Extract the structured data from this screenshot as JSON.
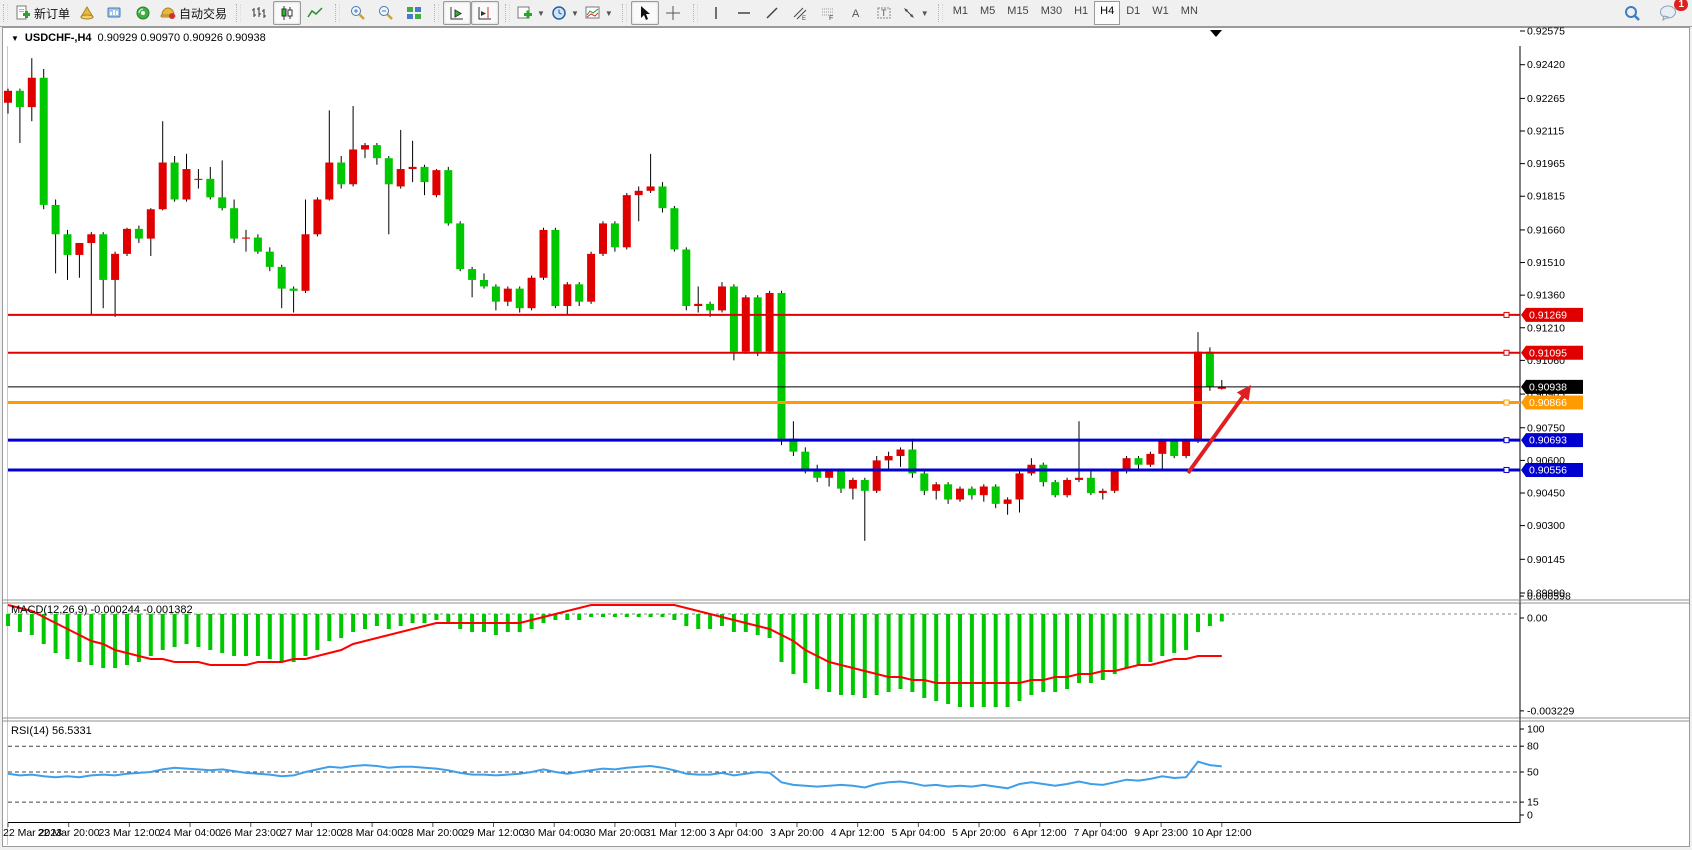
{
  "toolbar": {
    "new_order_label": "新订单",
    "auto_trading_label": "自动交易",
    "timeframes": [
      "M1",
      "M5",
      "M15",
      "M30",
      "H1",
      "H4",
      "D1",
      "W1",
      "MN"
    ],
    "active_timeframe": "H4",
    "chat_badge": "1"
  },
  "window": {
    "title": "USDCHF-,H4",
    "ohlc_text": "0.90929 0.90970 0.90926 0.90938"
  },
  "price_axis": {
    "ticks": [
      "0.92575",
      "0.92420",
      "0.92265",
      "0.92115",
      "0.91965",
      "0.91815",
      "0.91660",
      "0.91510",
      "0.91360",
      "0.91210",
      "0.91060",
      "0.90905",
      "0.90750",
      "0.90600",
      "0.90450",
      "0.90300",
      "0.90145",
      "0.89990"
    ],
    "p_top": 0.92575,
    "p_bottom": 0.8999
  },
  "hlines": [
    {
      "label": "0.91269",
      "price": 0.91269,
      "color": "#e00000",
      "width": 2
    },
    {
      "label": "0.91095",
      "price": 0.91095,
      "color": "#e00000",
      "width": 2
    },
    {
      "label": "0.90938",
      "price": 0.90938,
      "color": "#000000",
      "width": 1,
      "current": true
    },
    {
      "label": "0.90866",
      "price": 0.90866,
      "color": "#ff9a00",
      "width": 3
    },
    {
      "label": "0.90693",
      "price": 0.90693,
      "color": "#0000d0",
      "width": 3
    },
    {
      "label": "0.90556",
      "price": 0.90556,
      "color": "#0000d0",
      "width": 3
    }
  ],
  "colors": {
    "up": "#e00000",
    "down": "#00c800",
    "wick": "#000000",
    "rsi_line": "#3e9fe8",
    "macd_hist": "#00c800",
    "macd_signal": "#ff0000",
    "arrow": "#e02020"
  },
  "chart_data": {
    "type": "candlestick",
    "symbol": "USDCHF",
    "period": "H4",
    "title": "USDCHF-,H4  0.90929 0.90970 0.90926 0.90938",
    "ylim": [
      0.8999,
      0.92575
    ],
    "time_labels": [
      "22 Mar 2023",
      "22 Mar 20:00",
      "23 Mar 12:00",
      "24 Mar 04:00",
      "26 Mar 23:00",
      "27 Mar 12:00",
      "28 Mar 04:00",
      "28 Mar 20:00",
      "29 Mar 12:00",
      "30 Mar 04:00",
      "30 Mar 20:00",
      "31 Mar 12:00",
      "3 Apr 04:00",
      "3 Apr 20:00",
      "4 Apr 12:00",
      "5 Apr 04:00",
      "5 Apr 20:00",
      "6 Apr 12:00",
      "7 Apr 04:00",
      "9 Apr 23:00",
      "10 Apr 12:00"
    ],
    "candles": [
      [
        0.92245,
        0.9231,
        0.92195,
        0.923
      ],
      [
        0.923,
        0.9231,
        0.9206,
        0.92225
      ],
      [
        0.92225,
        0.9245,
        0.9216,
        0.9236
      ],
      [
        0.9236,
        0.924,
        0.91755,
        0.91775
      ],
      [
        0.91775,
        0.918,
        0.9146,
        0.9164
      ],
      [
        0.9164,
        0.9166,
        0.9143,
        0.91545
      ],
      [
        0.91545,
        0.916,
        0.9144,
        0.916
      ],
      [
        0.916,
        0.9165,
        0.9127,
        0.9164
      ],
      [
        0.9164,
        0.9165,
        0.913,
        0.9143
      ],
      [
        0.9143,
        0.9156,
        0.9126,
        0.9155
      ],
      [
        0.9155,
        0.9167,
        0.9154,
        0.91665
      ],
      [
        0.91665,
        0.9168,
        0.916,
        0.9162
      ],
      [
        0.9162,
        0.9176,
        0.9154,
        0.91755
      ],
      [
        0.91755,
        0.9216,
        0.9175,
        0.9197
      ],
      [
        0.9197,
        0.92,
        0.9179,
        0.918
      ],
      [
        0.918,
        0.9201,
        0.9179,
        0.9194
      ],
      [
        0.9189,
        0.9194,
        0.9185,
        0.91895
      ],
      [
        0.91895,
        0.9195,
        0.918,
        0.9181
      ],
      [
        0.9181,
        0.9198,
        0.9175,
        0.9176
      ],
      [
        0.9176,
        0.918,
        0.916,
        0.9162
      ],
      [
        0.9162,
        0.9166,
        0.9156,
        0.91625
      ],
      [
        0.91625,
        0.9164,
        0.9155,
        0.9156
      ],
      [
        0.9156,
        0.9158,
        0.9147,
        0.9149
      ],
      [
        0.9149,
        0.915,
        0.913,
        0.9139
      ],
      [
        0.9139,
        0.914,
        0.9128,
        0.9138
      ],
      [
        0.9138,
        0.918,
        0.9137,
        0.9164
      ],
      [
        0.9164,
        0.9181,
        0.9163,
        0.918
      ],
      [
        0.918,
        0.9221,
        0.91795,
        0.9197
      ],
      [
        0.9197,
        0.92,
        0.9185,
        0.9187
      ],
      [
        0.9187,
        0.9223,
        0.9186,
        0.9203
      ],
      [
        0.9203,
        0.9206,
        0.9199,
        0.9205
      ],
      [
        0.9205,
        0.9206,
        0.9196,
        0.9199
      ],
      [
        0.9199,
        0.92,
        0.9164,
        0.9187
      ],
      [
        0.9186,
        0.9212,
        0.9185,
        0.9194
      ],
      [
        0.9194,
        0.9207,
        0.9188,
        0.9195
      ],
      [
        0.9195,
        0.9196,
        0.9182,
        0.9188
      ],
      [
        0.9182,
        0.9194,
        0.9181,
        0.91935
      ],
      [
        0.91935,
        0.9195,
        0.9168,
        0.9169
      ],
      [
        0.9169,
        0.917,
        0.9147,
        0.9148
      ],
      [
        0.9148,
        0.9149,
        0.9135,
        0.9143
      ],
      [
        0.9143,
        0.9146,
        0.9139,
        0.914
      ],
      [
        0.914,
        0.9141,
        0.9129,
        0.9133
      ],
      [
        0.9133,
        0.914,
        0.9131,
        0.9139
      ],
      [
        0.9139,
        0.914,
        0.9128,
        0.913
      ],
      [
        0.913,
        0.9145,
        0.9129,
        0.9144
      ],
      [
        0.9144,
        0.9167,
        0.9143,
        0.9166
      ],
      [
        0.9166,
        0.9167,
        0.913,
        0.9131
      ],
      [
        0.9131,
        0.9142,
        0.9127,
        0.9141
      ],
      [
        0.9141,
        0.9142,
        0.9131,
        0.9133
      ],
      [
        0.9133,
        0.9156,
        0.9132,
        0.9155
      ],
      [
        0.9155,
        0.917,
        0.9154,
        0.9169
      ],
      [
        0.9169,
        0.917,
        0.9156,
        0.9158
      ],
      [
        0.9158,
        0.9183,
        0.9157,
        0.9182
      ],
      [
        0.9182,
        0.9186,
        0.917,
        0.9184
      ],
      [
        0.9184,
        0.9201,
        0.9183,
        0.9186
      ],
      [
        0.9186,
        0.9188,
        0.9174,
        0.9176
      ],
      [
        0.9176,
        0.9177,
        0.9156,
        0.9157
      ],
      [
        0.9157,
        0.9158,
        0.9129,
        0.9131
      ],
      [
        0.9131,
        0.914,
        0.9128,
        0.9132
      ],
      [
        0.9132,
        0.9133,
        0.9126,
        0.9129
      ],
      [
        0.9129,
        0.9142,
        0.9128,
        0.914
      ],
      [
        0.914,
        0.9141,
        0.9106,
        0.911
      ],
      [
        0.911,
        0.9136,
        0.9109,
        0.9135
      ],
      [
        0.9135,
        0.9136,
        0.9108,
        0.911
      ],
      [
        0.911,
        0.9138,
        0.9109,
        0.9137
      ],
      [
        0.9137,
        0.9138,
        0.9067,
        0.907
      ],
      [
        0.907,
        0.9078,
        0.9062,
        0.9064
      ],
      [
        0.9064,
        0.9066,
        0.9054,
        0.9056
      ],
      [
        0.9056,
        0.9058,
        0.905,
        0.9052
      ],
      [
        0.9052,
        0.9056,
        0.9048,
        0.9055
      ],
      [
        0.9055,
        0.9056,
        0.9045,
        0.9047
      ],
      [
        0.9047,
        0.9052,
        0.9042,
        0.9051
      ],
      [
        0.9051,
        0.9052,
        0.9023,
        0.9046
      ],
      [
        0.9046,
        0.9062,
        0.9045,
        0.906
      ],
      [
        0.906,
        0.9064,
        0.9056,
        0.9062
      ],
      [
        0.9062,
        0.9066,
        0.9057,
        0.9065
      ],
      [
        0.9065,
        0.907,
        0.9052,
        0.9054
      ],
      [
        0.9054,
        0.9055,
        0.9044,
        0.9046
      ],
      [
        0.9046,
        0.905,
        0.9042,
        0.9049
      ],
      [
        0.9049,
        0.905,
        0.904,
        0.9042
      ],
      [
        0.9042,
        0.9048,
        0.9041,
        0.9047
      ],
      [
        0.9047,
        0.9048,
        0.9042,
        0.9044
      ],
      [
        0.9044,
        0.9049,
        0.9041,
        0.9048
      ],
      [
        0.9048,
        0.9049,
        0.9038,
        0.904
      ],
      [
        0.904,
        0.9043,
        0.9035,
        0.9042
      ],
      [
        0.9042,
        0.9055,
        0.9036,
        0.9054
      ],
      [
        0.9054,
        0.9061,
        0.9053,
        0.9058
      ],
      [
        0.9058,
        0.9059,
        0.9048,
        0.905
      ],
      [
        0.905,
        0.9051,
        0.9043,
        0.9044
      ],
      [
        0.9044,
        0.9052,
        0.9043,
        0.9051
      ],
      [
        0.9051,
        0.9078,
        0.905,
        0.9052
      ],
      [
        0.9052,
        0.9056,
        0.9044,
        0.9045
      ],
      [
        0.9045,
        0.9047,
        0.9042,
        0.9046
      ],
      [
        0.9046,
        0.9056,
        0.9045,
        0.9055
      ],
      [
        0.9055,
        0.9062,
        0.9054,
        0.9061
      ],
      [
        0.9061,
        0.9062,
        0.9056,
        0.9058
      ],
      [
        0.9058,
        0.9064,
        0.9057,
        0.9063
      ],
      [
        0.9063,
        0.907,
        0.9056,
        0.9069
      ],
      [
        0.9069,
        0.907,
        0.9061,
        0.9062
      ],
      [
        0.9062,
        0.907,
        0.9061,
        0.9069
      ],
      [
        0.90693,
        0.9119,
        0.9068,
        0.911
      ],
      [
        0.911,
        0.9112,
        0.9092,
        0.9094
      ],
      [
        0.90929,
        0.9097,
        0.90926,
        0.90938
      ]
    ],
    "macd": {
      "label": "MACD(12,26,9)",
      "values_text": "-0.000244 -0.001382",
      "main_value": -0.000244,
      "signal_value": -0.001382,
      "axis_labels": [
        "0.000598",
        "0.00",
        "-0.003229"
      ],
      "axis_max": 0.000598,
      "axis_min": -0.003229,
      "histogram": [
        -0.0004,
        -0.0006,
        -0.0007,
        -0.001,
        -0.0013,
        -0.0015,
        -0.0016,
        -0.0017,
        -0.0018,
        -0.0018,
        -0.0017,
        -0.0016,
        -0.0014,
        -0.0012,
        -0.0011,
        -0.001,
        -0.0011,
        -0.0012,
        -0.0013,
        -0.0014,
        -0.0014,
        -0.0014,
        -0.0015,
        -0.0016,
        -0.0016,
        -0.0014,
        -0.0012,
        -0.0009,
        -0.0008,
        -0.0006,
        -0.0005,
        -0.0004,
        -0.0005,
        -0.0004,
        -0.0003,
        -0.0003,
        -0.0002,
        -0.0003,
        -0.0005,
        -0.0006,
        -0.0006,
        -0.0007,
        -0.0006,
        -0.0006,
        -0.0005,
        -0.0003,
        -0.0002,
        -0.0002,
        -0.0002,
        -0.0001,
        -0.0001,
        -0.0001,
        -0.0001,
        -0.0001,
        -0.0001,
        -0.0001,
        -0.0002,
        -0.0004,
        -0.0005,
        -0.0005,
        -0.0004,
        -0.0006,
        -0.0006,
        -0.0007,
        -0.0008,
        -0.0016,
        -0.002,
        -0.0023,
        -0.0025,
        -0.0026,
        -0.0027,
        -0.0027,
        -0.0028,
        -0.0027,
        -0.0026,
        -0.0025,
        -0.0026,
        -0.0028,
        -0.0029,
        -0.003,
        -0.0031,
        -0.0031,
        -0.0031,
        -0.0031,
        -0.0031,
        -0.0029,
        -0.0027,
        -0.0026,
        -0.0026,
        -0.0025,
        -0.0023,
        -0.0023,
        -0.0022,
        -0.002,
        -0.0018,
        -0.0017,
        -0.0016,
        -0.0014,
        -0.0013,
        -0.0012,
        -0.0006,
        -0.0004,
        -0.00025
      ],
      "signal": [
        0.0003,
        0.0002,
        0.0001,
        -0.0001,
        -0.0003,
        -0.0005,
        -0.0007,
        -0.0009,
        -0.001,
        -0.0012,
        -0.0013,
        -0.0014,
        -0.0015,
        -0.0015,
        -0.0016,
        -0.0016,
        -0.0016,
        -0.0017,
        -0.0017,
        -0.0017,
        -0.0017,
        -0.0016,
        -0.0016,
        -0.0016,
        -0.0015,
        -0.0015,
        -0.0014,
        -0.0013,
        -0.0012,
        -0.001,
        -0.0009,
        -0.0008,
        -0.0007,
        -0.0006,
        -0.0005,
        -0.0004,
        -0.0003,
        -0.0003,
        -0.0003,
        -0.0003,
        -0.0003,
        -0.0003,
        -0.0003,
        -0.0003,
        -0.0002,
        -0.0001,
        0.0,
        0.0001,
        0.0002,
        0.0003,
        0.0004,
        0.0004,
        0.0004,
        0.0004,
        0.0004,
        0.0003,
        0.0003,
        0.0002,
        0.0001,
        0.0,
        -0.0001,
        -0.0002,
        -0.0003,
        -0.0004,
        -0.0005,
        -0.0007,
        -0.0009,
        -0.0012,
        -0.0014,
        -0.0016,
        -0.0017,
        -0.0018,
        -0.0019,
        -0.002,
        -0.0021,
        -0.0021,
        -0.0022,
        -0.0022,
        -0.0023,
        -0.0023,
        -0.0023,
        -0.0023,
        -0.0023,
        -0.0023,
        -0.0023,
        -0.0023,
        -0.0022,
        -0.0022,
        -0.0021,
        -0.0021,
        -0.002,
        -0.002,
        -0.0019,
        -0.0019,
        -0.0018,
        -0.0017,
        -0.0017,
        -0.0016,
        -0.0015,
        -0.0015,
        -0.0014,
        -0.0014,
        -0.0014
      ]
    },
    "rsi": {
      "label": "RSI(14)",
      "value_text": "56.5331",
      "value": 56.5331,
      "axis_labels": [
        "100",
        "80",
        "50",
        "15",
        "0"
      ],
      "level_lines": [
        80,
        50,
        15
      ],
      "series": [
        48,
        46,
        47,
        45,
        44,
        45,
        44,
        46,
        47,
        46,
        48,
        49,
        50,
        53,
        55,
        54,
        53,
        52,
        53,
        51,
        49,
        48,
        47,
        45,
        46,
        50,
        53,
        56,
        55,
        57,
        58,
        57,
        55,
        56,
        56,
        55,
        54,
        52,
        49,
        47,
        47,
        46,
        47,
        48,
        50,
        53,
        50,
        48,
        50,
        52,
        54,
        53,
        55,
        56,
        57,
        55,
        52,
        48,
        47,
        47,
        49,
        46,
        48,
        50,
        49,
        38,
        35,
        34,
        33,
        34,
        35,
        34,
        32,
        36,
        38,
        39,
        37,
        34,
        35,
        33,
        34,
        33,
        35,
        33,
        31,
        36,
        38,
        36,
        34,
        36,
        39,
        36,
        35,
        38,
        41,
        40,
        42,
        45,
        43,
        44,
        62,
        58,
        56.5
      ]
    },
    "annotation_arrow": {
      "from": [
        1188,
        473
      ],
      "to": [
        1251,
        385
      ]
    },
    "top_marker_x": 1216
  }
}
